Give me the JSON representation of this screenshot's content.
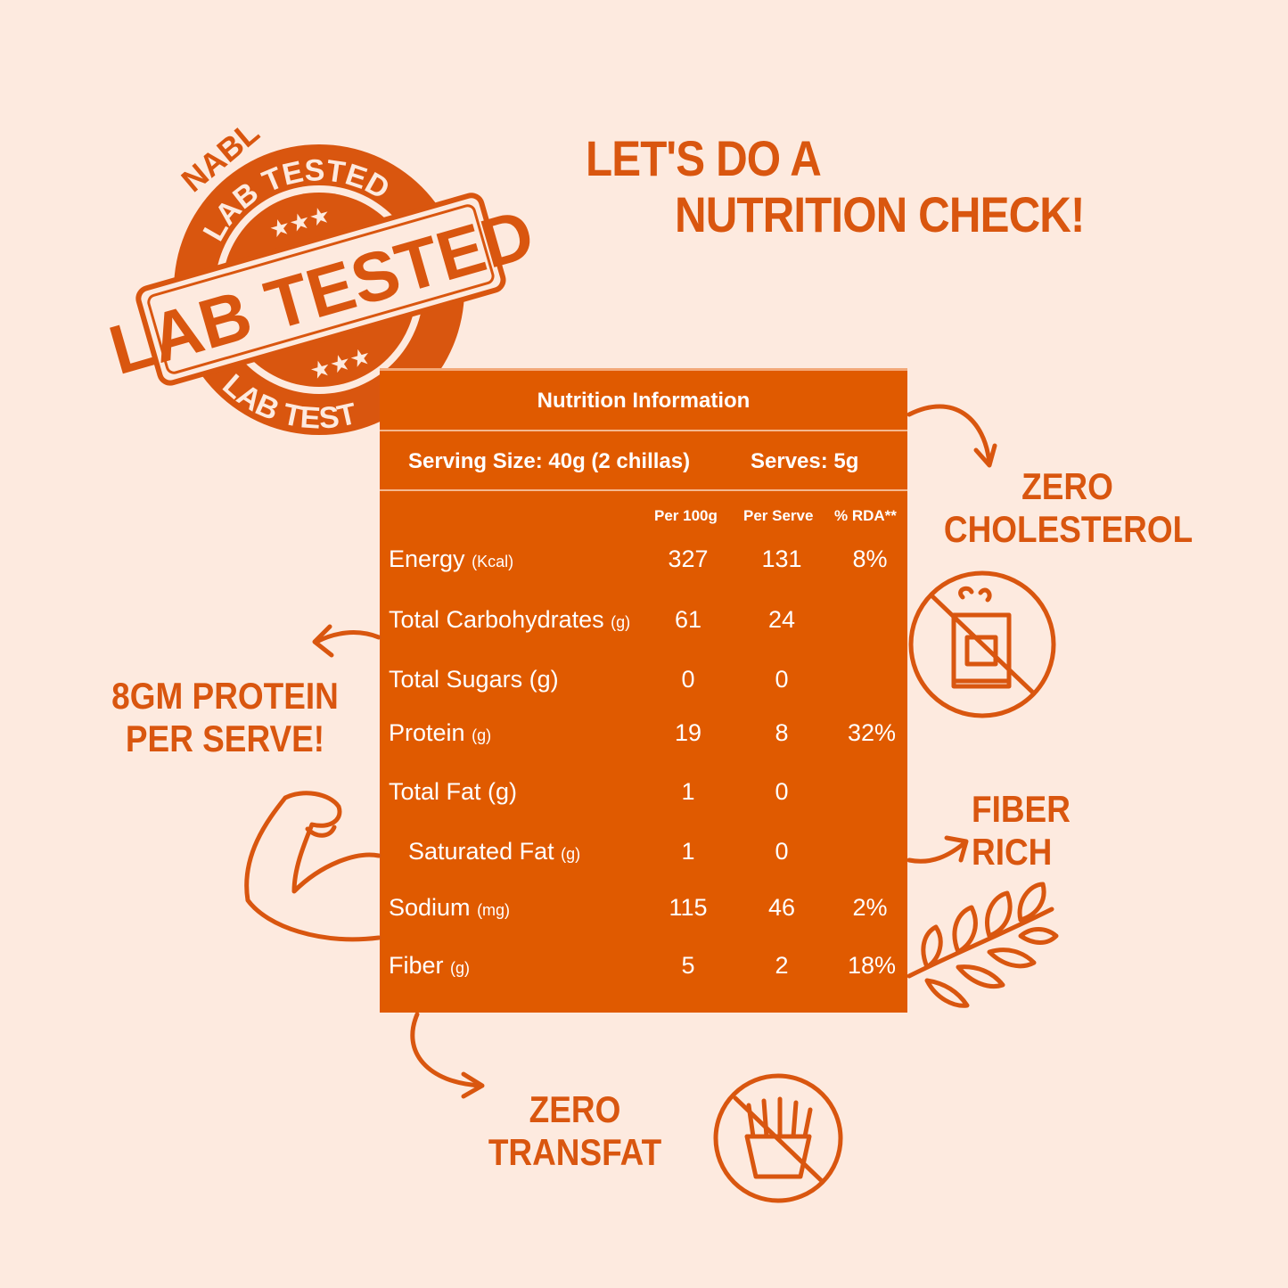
{
  "colors": {
    "background": "#fdeadf",
    "accent": "#e05a00",
    "text": "#d9560f"
  },
  "headline": {
    "line1": "LET'S DO A",
    "line2": "NUTRITION CHECK!"
  },
  "stamp": {
    "top_text": "NABL",
    "ring_top": "LAB TESTED",
    "banner": "LAB TESTED",
    "ring_bottom": "LAB TESTED"
  },
  "table": {
    "title": "Nutrition Information",
    "serving_size": "Serving Size: 40g (2 chillas)",
    "serves": "Serves: 5g",
    "columns": [
      "Per 100g",
      "Per Serve",
      "% RDA**"
    ],
    "rows": [
      {
        "label": "Energy",
        "unit": "(Kcal)",
        "per100": "327",
        "serve": "131",
        "rda": "8%"
      },
      {
        "label": "Total Carbohydrates",
        "unit": "(g)",
        "per100": "61",
        "serve": "24",
        "rda": ""
      },
      {
        "label": "Total Sugars (g)",
        "unit": "",
        "per100": "0",
        "serve": "0",
        "rda": ""
      },
      {
        "label": "Protein",
        "unit": "(g)",
        "per100": "19",
        "serve": "8",
        "rda": "32%"
      },
      {
        "label": "Total Fat (g)",
        "unit": "",
        "per100": "1",
        "serve": "0",
        "rda": ""
      },
      {
        "label": "Saturated Fat",
        "unit": "(g)",
        "per100": "1",
        "serve": "0",
        "rda": ""
      },
      {
        "label": "Sodium",
        "unit": "(mg)",
        "per100": "115",
        "serve": "46",
        "rda": "2%"
      },
      {
        "label": "Fiber",
        "unit": "(g)",
        "per100": "5",
        "serve": "2",
        "rda": "18%"
      }
    ]
  },
  "callouts": {
    "cholesterol": {
      "line1": "ZERO",
      "line2": "CHOLESTEROL",
      "icon": "no-cholesterol-icon"
    },
    "protein": {
      "line1": "8GM PROTEIN",
      "line2": "PER SERVE!",
      "icon": "flexed-arm-icon"
    },
    "fiber": {
      "line1": "FIBER",
      "line2": "RICH",
      "icon": "wheat-icon"
    },
    "transfat": {
      "line1": "ZERO",
      "line2": "TRANSFAT",
      "icon": "no-fries-icon"
    }
  }
}
